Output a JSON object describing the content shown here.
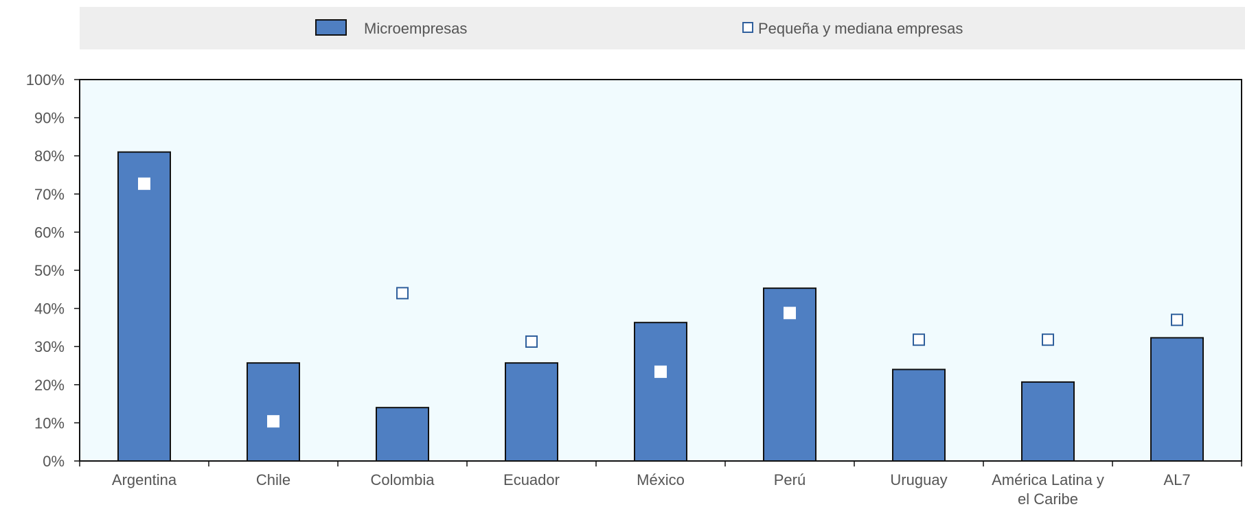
{
  "colors": {
    "bar_fill": "#4f7fc2",
    "bar_stroke": "#111111",
    "plot_background": "#f1fbfe",
    "legend_background": "#eeeeee",
    "marker_fill_white": "#ffffff",
    "marker_stroke": "#2f5f9c"
  },
  "legend": {
    "micro_label": "Microempresas",
    "pyme_label": "Pequeña y mediana empresas"
  },
  "chart_data": {
    "type": "bar",
    "categories": [
      [
        "Argentina"
      ],
      [
        "Chile"
      ],
      [
        "Colombia"
      ],
      [
        "Ecuador"
      ],
      [
        "México"
      ],
      [
        "Perú"
      ],
      [
        "Uruguay"
      ],
      [
        "América Latina y",
        "el Caribe"
      ],
      [
        "AL7"
      ]
    ],
    "series": [
      {
        "name": "Microempresas",
        "kind": "bar",
        "values": [
          81,
          25.7,
          14,
          25.7,
          36.3,
          45.3,
          24,
          20.7,
          32.3
        ]
      },
      {
        "name": "Pequeña y mediana empresas",
        "kind": "marker",
        "values": [
          72.7,
          10.4,
          44,
          31.3,
          23.4,
          38.8,
          31.8,
          31.8,
          37
        ]
      }
    ],
    "ylim": [
      0,
      100
    ],
    "yticks": [
      "0%",
      "10%",
      "20%",
      "30%",
      "40%",
      "50%",
      "60%",
      "70%",
      "80%",
      "90%",
      "100%"
    ],
    "legend_position": "top",
    "grid": false
  }
}
